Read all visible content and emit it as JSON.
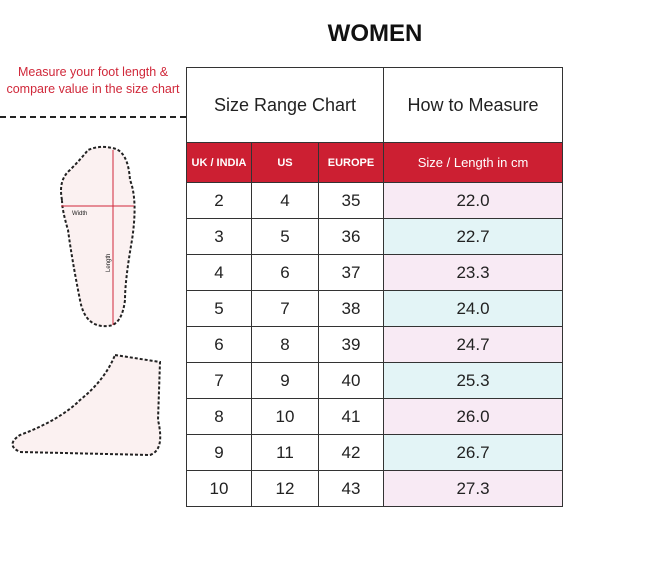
{
  "title": "WOMEN",
  "note": "Measure your foot length & compare value in the size chart",
  "diagram": {
    "width_label": "Width",
    "length_label": "Length"
  },
  "table": {
    "tab_left": "Size Range Chart",
    "tab_right": "How to Measure",
    "headers": [
      "UK / INDIA",
      "US",
      "EUROPE",
      "Size / Length in cm"
    ],
    "rows": [
      [
        "2",
        "4",
        "35",
        "22.0"
      ],
      [
        "3",
        "5",
        "36",
        "22.7"
      ],
      [
        "4",
        "6",
        "37",
        "23.3"
      ],
      [
        "5",
        "7",
        "38",
        "24.0"
      ],
      [
        "6",
        "8",
        "39",
        "24.7"
      ],
      [
        "7",
        "9",
        "40",
        "25.3"
      ],
      [
        "8",
        "10",
        "41",
        "26.0"
      ],
      [
        "9",
        "11",
        "42",
        "26.7"
      ],
      [
        "10",
        "12",
        "43",
        "27.3"
      ]
    ]
  },
  "colors": {
    "accent": "#cc1f32",
    "row_pink": "#f8eaf4",
    "row_blue": "#e3f4f6"
  }
}
